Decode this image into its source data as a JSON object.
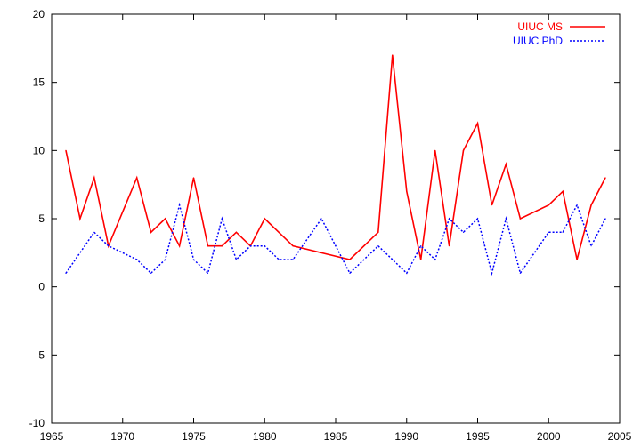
{
  "chart_data": {
    "type": "line",
    "title": "",
    "xlabel": "",
    "ylabel": "",
    "xlim": [
      1965,
      2005
    ],
    "ylim": [
      -10,
      20
    ],
    "xticks": [
      1965,
      1970,
      1975,
      1980,
      1985,
      1990,
      1995,
      2000,
      2005
    ],
    "yticks": [
      -10,
      -5,
      0,
      5,
      10,
      15,
      20
    ],
    "grid": false,
    "legend_position": "top-right",
    "series": [
      {
        "name": "UIUC MS",
        "color": "#ff0000",
        "style": "solid",
        "x": [
          1966,
          1967,
          1968,
          1969,
          1971,
          1972,
          1973,
          1974,
          1975,
          1976,
          1977,
          1978,
          1979,
          1980,
          1982,
          1986,
          1988,
          1989,
          1990,
          1991,
          1992,
          1993,
          1994,
          1995,
          1996,
          1997,
          1998,
          2000,
          2001,
          2002,
          2003,
          2004
        ],
        "y": [
          10,
          5,
          8,
          3,
          8,
          4,
          5,
          3,
          8,
          3,
          3,
          4,
          3,
          5,
          3,
          2,
          4,
          17,
          7,
          2,
          10,
          3,
          10,
          12,
          6,
          9,
          5,
          6,
          7,
          2,
          6,
          8
        ]
      },
      {
        "name": "UIUC PhD",
        "color": "#0000ff",
        "style": "dotted",
        "x": [
          1966,
          1968,
          1969,
          1971,
          1972,
          1973,
          1974,
          1975,
          1976,
          1977,
          1978,
          1979,
          1980,
          1981,
          1982,
          1984,
          1986,
          1988,
          1990,
          1991,
          1992,
          1993,
          1994,
          1995,
          1996,
          1997,
          1998,
          2000,
          2001,
          2002,
          2003,
          2004
        ],
        "y": [
          1,
          4,
          3,
          2,
          1,
          2,
          6,
          2,
          1,
          5,
          2,
          3,
          3,
          2,
          2,
          5,
          1,
          3,
          1,
          3,
          2,
          5,
          4,
          5,
          1,
          5,
          1,
          4,
          4,
          6,
          3,
          5
        ]
      }
    ]
  }
}
